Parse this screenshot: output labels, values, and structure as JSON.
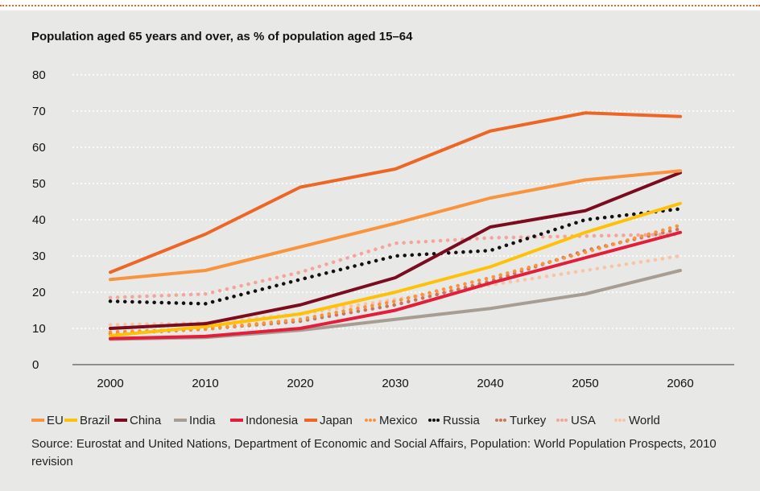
{
  "chart_data": {
    "type": "line",
    "title": "Population aged 65 years and over, as % of population aged 15–64",
    "x": [
      2000,
      2010,
      2020,
      2030,
      2040,
      2050,
      2060
    ],
    "xlabel": "",
    "ylabel": "",
    "ylim": [
      0,
      80
    ],
    "yticks": [
      0,
      10,
      20,
      30,
      40,
      50,
      60,
      70,
      80
    ],
    "grid": "horizontal dotted",
    "legend_position": "bottom",
    "series": [
      {
        "name": "EU",
        "color": "#f7943d",
        "style": "solid",
        "values": [
          23.5,
          26,
          32.5,
          39,
          46,
          51,
          53.5
        ]
      },
      {
        "name": "Brazil",
        "color": "#ffc107",
        "style": "solid",
        "values": [
          8,
          10.5,
          14,
          20,
          27,
          36.5,
          44.5
        ]
      },
      {
        "name": "China",
        "color": "#7b0c1f",
        "style": "solid",
        "values": [
          10,
          11.3,
          16.5,
          24,
          38,
          42.5,
          53
        ]
      },
      {
        "name": "India",
        "color": "#a89d92",
        "style": "solid",
        "values": [
          7,
          7.5,
          9.5,
          12.5,
          15.5,
          19.5,
          26
        ]
      },
      {
        "name": "Indonesia",
        "color": "#e21e3a",
        "style": "solid",
        "values": [
          7.2,
          7.8,
          10,
          15,
          22.5,
          29.5,
          36.5
        ]
      },
      {
        "name": "Japan",
        "color": "#ee6625",
        "style": "solid",
        "values": [
          25.5,
          36,
          49,
          54,
          64.5,
          69.5,
          68.5
        ]
      },
      {
        "name": "Mexico",
        "color": "#f7943d",
        "style": "dotted",
        "values": [
          9,
          9.8,
          12.5,
          17.5,
          24,
          31,
          38.5
        ]
      },
      {
        "name": "Russia",
        "color": "#111111",
        "style": "dotted",
        "values": [
          17.5,
          16.8,
          23.5,
          30,
          31.5,
          40,
          43
        ]
      },
      {
        "name": "Turkey",
        "color": "#c9765c",
        "style": "dotted",
        "values": [
          8.5,
          9.8,
          12,
          16.5,
          23,
          31.5,
          37.5
        ]
      },
      {
        "name": "USA",
        "color": "#f4a49a",
        "style": "dotted",
        "values": [
          18.5,
          19.5,
          25.5,
          33.5,
          35,
          35.5,
          36
        ]
      },
      {
        "name": "World",
        "color": "#f9c4a5",
        "style": "dotted",
        "values": [
          11,
          11.5,
          14,
          18,
          22,
          26,
          30
        ]
      }
    ]
  },
  "legend": {
    "items": [
      {
        "label": "EU",
        "color": "#f7943d",
        "style": "solid"
      },
      {
        "label": "Brazil",
        "color": "#ffc107",
        "style": "solid"
      },
      {
        "label": "China",
        "color": "#7b0c1f",
        "style": "solid"
      },
      {
        "label": "India",
        "color": "#a89d92",
        "style": "solid"
      },
      {
        "label": "Indonesia",
        "color": "#e21e3a",
        "style": "solid"
      },
      {
        "label": "Japan",
        "color": "#ee6625",
        "style": "solid"
      },
      {
        "label": "Mexico",
        "color": "#f7943d",
        "style": "dotted"
      },
      {
        "label": "Russia",
        "color": "#111111",
        "style": "dotted"
      },
      {
        "label": "Turkey",
        "color": "#c9765c",
        "style": "dotted"
      },
      {
        "label": "USA",
        "color": "#f4a49a",
        "style": "dotted"
      },
      {
        "label": "World",
        "color": "#f9c4a5",
        "style": "dotted"
      }
    ]
  },
  "source": {
    "text": "Source: Eurostat and United Nations, Department of Economic and Social Affairs, Population: World Population Prospects, 2010 revision"
  },
  "colors": {
    "panel_background": "#e8e8e7",
    "gridline": "#ffffff",
    "top_rule": "#e8632b"
  }
}
